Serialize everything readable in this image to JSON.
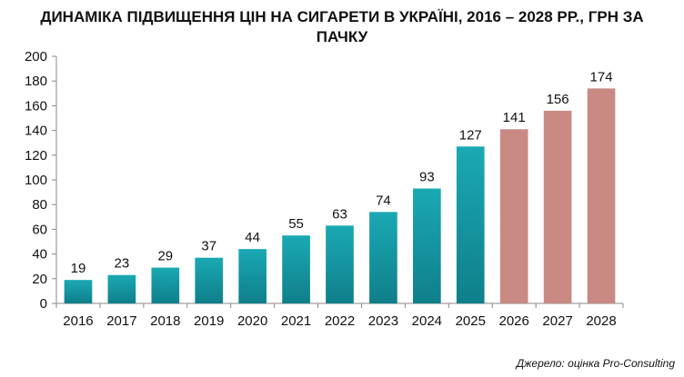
{
  "title_line1": "ДИНАМІКА ПІДВИЩЕННЯ ЦІН НА СИГАРЕТИ В УКРАЇНІ, 2016 – 2028 РР., ГРН ЗА",
  "title_line2": "ПАЧКУ",
  "source": "Джерело: оцінка Pro-Consulting",
  "colors": {
    "actual": "#1aa9b4",
    "actual_dark": "#0f7f8a",
    "forecast": "#c98a84"
  },
  "chart_data": {
    "type": "bar",
    "title": "ДИНАМІКА ПІДВИЩЕННЯ ЦІН НА СИГАРЕТИ В УКРАЇНІ, 2016 – 2028 РР., ГРН ЗА ПАЧКУ",
    "xlabel": "",
    "ylabel": "",
    "ylim": [
      0,
      200
    ],
    "yticks": [
      0,
      20,
      40,
      60,
      80,
      100,
      120,
      140,
      160,
      180,
      200
    ],
    "categories": [
      "2016",
      "2017",
      "2018",
      "2019",
      "2020",
      "2021",
      "2022",
      "2023",
      "2024",
      "2025",
      "2026",
      "2027",
      "2028"
    ],
    "values": [
      19,
      23,
      29,
      37,
      44,
      55,
      63,
      74,
      93,
      127,
      141,
      156,
      174
    ],
    "forecast_from": "2026",
    "grid": false,
    "legend": "none"
  }
}
